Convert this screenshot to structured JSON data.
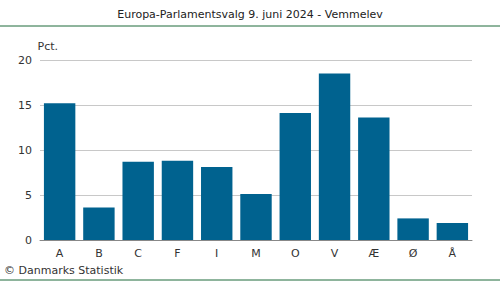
{
  "chart_data": {
    "type": "bar",
    "title": "Europa-Parlamentsvalg 9. juni 2024 - Vemmelev",
    "y_label": "Pct.",
    "categories": [
      "A",
      "B",
      "C",
      "F",
      "I",
      "M",
      "O",
      "V",
      "Æ",
      "Ø",
      "Å"
    ],
    "values": [
      15.2,
      3.6,
      8.7,
      8.8,
      8.1,
      5.1,
      14.1,
      18.5,
      13.6,
      2.4,
      1.9
    ],
    "color": "#00628f",
    "ylim": [
      0,
      20
    ],
    "yticks": [
      0,
      5,
      10,
      15,
      20
    ],
    "grid": true,
    "annotations": [
      "© Danmarks Statistik"
    ]
  }
}
